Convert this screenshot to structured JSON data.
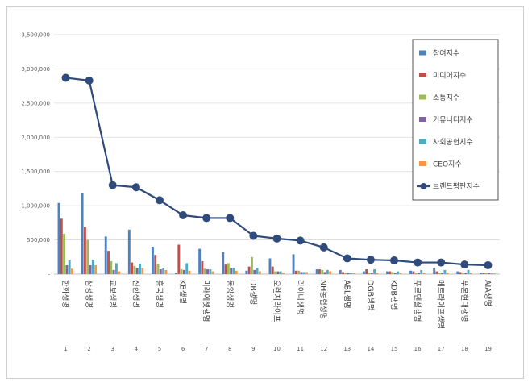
{
  "chart_data": {
    "type": "bar",
    "title": "",
    "xlabel": "",
    "ylabel": "",
    "ylim": [
      0,
      3500000
    ],
    "yticks": [
      0,
      500000,
      1000000,
      1500000,
      2000000,
      2500000,
      3000000,
      3500000
    ],
    "ytick_labels": [
      "-",
      "500,000",
      "1,000,000",
      "1,500,000",
      "2,000,000",
      "2,500,000",
      "3,000,000",
      "3,500,000"
    ],
    "legend_position": "top-right",
    "categories": [
      "한화생명",
      "삼성생명",
      "교보생명",
      "신한생명",
      "흥국생명",
      "KB생명",
      "미래에셋생명",
      "동양생명",
      "DB생명",
      "오렌지라이프",
      "라이나생명",
      "NH농협생명",
      "ABL생명",
      "DGB생명",
      "KDB생명",
      "푸르덴셜생명",
      "메트라이프생명",
      "푸본현대생명",
      "AIA생명"
    ],
    "indices": [
      "1",
      "2",
      "3",
      "4",
      "5",
      "6",
      "7",
      "8",
      "9",
      "10",
      "11",
      "12",
      "13",
      "14",
      "15",
      "16",
      "17",
      "18",
      "19"
    ],
    "series": [
      {
        "name": "참여지수",
        "color": "#4F81BD",
        "kind": "bar",
        "values": [
          1040000,
          1180000,
          550000,
          650000,
          400000,
          20000,
          370000,
          320000,
          50000,
          230000,
          290000,
          70000,
          60000,
          40000,
          40000,
          50000,
          90000,
          40000,
          20000
        ]
      },
      {
        "name": "미디어지수",
        "color": "#C0504D",
        "kind": "bar",
        "values": [
          810000,
          690000,
          340000,
          170000,
          280000,
          430000,
          190000,
          140000,
          110000,
          110000,
          50000,
          70000,
          30000,
          70000,
          40000,
          40000,
          40000,
          30000,
          20000
        ]
      },
      {
        "name": "소통지수",
        "color": "#9BBB59",
        "kind": "bar",
        "values": [
          590000,
          500000,
          190000,
          120000,
          150000,
          70000,
          80000,
          160000,
          250000,
          40000,
          50000,
          60000,
          20000,
          20000,
          30000,
          20000,
          20000,
          20000,
          20000
        ]
      },
      {
        "name": "커뮤니티지수",
        "color": "#8064A2",
        "kind": "bar",
        "values": [
          130000,
          130000,
          60000,
          90000,
          70000,
          60000,
          70000,
          90000,
          60000,
          40000,
          30000,
          30000,
          20000,
          20000,
          20000,
          20000,
          20000,
          20000,
          20000
        ]
      },
      {
        "name": "사회공헌지수",
        "color": "#4BACC6",
        "kind": "bar",
        "values": [
          200000,
          210000,
          160000,
          150000,
          90000,
          160000,
          70000,
          90000,
          90000,
          40000,
          30000,
          60000,
          20000,
          70000,
          40000,
          60000,
          60000,
          60000,
          10000
        ]
      },
      {
        "name": "CEO지수",
        "color": "#F79646",
        "kind": "bar",
        "values": [
          80000,
          130000,
          40000,
          90000,
          60000,
          50000,
          40000,
          50000,
          40000,
          20000,
          30000,
          40000,
          20000,
          20000,
          20000,
          20000,
          20000,
          20000,
          10000
        ]
      },
      {
        "name": "브랜드평판지수",
        "color": "#2F4B7C",
        "kind": "line",
        "values": [
          2870000,
          2830000,
          1300000,
          1270000,
          1080000,
          860000,
          820000,
          820000,
          560000,
          520000,
          490000,
          390000,
          230000,
          210000,
          200000,
          170000,
          170000,
          140000,
          130000
        ]
      }
    ]
  }
}
